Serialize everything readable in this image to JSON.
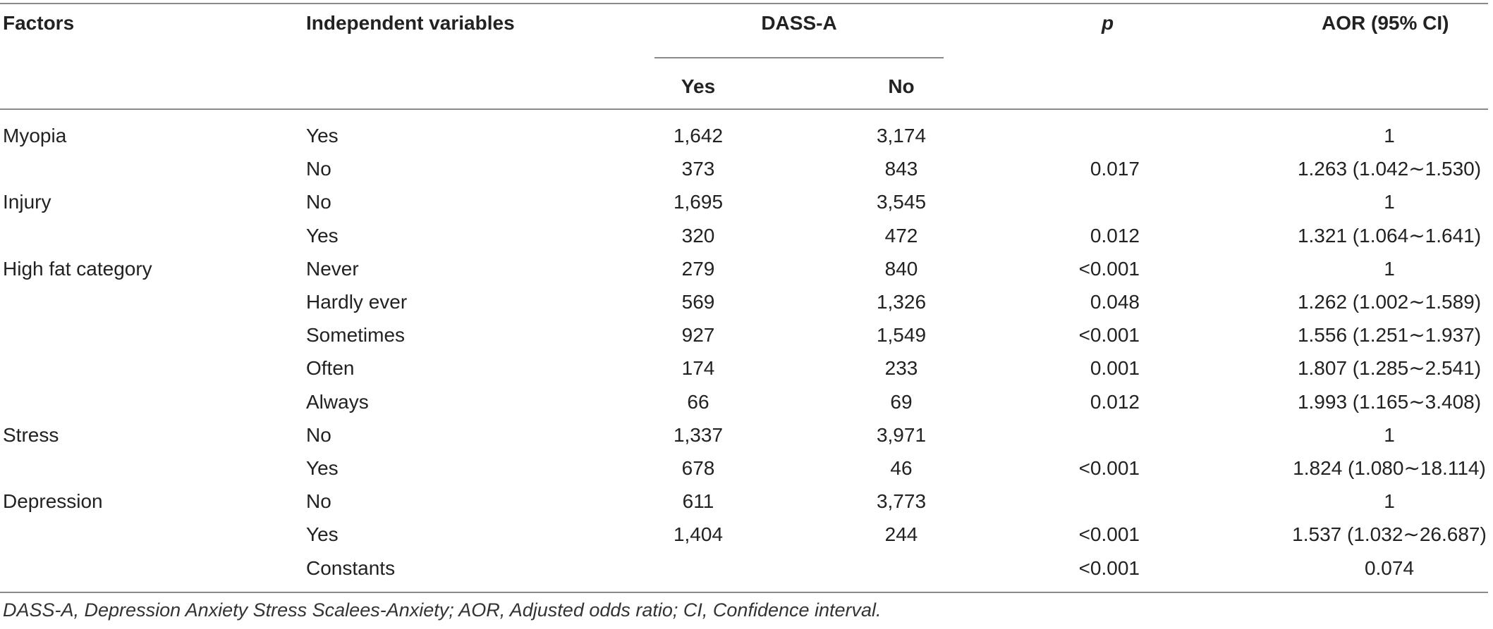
{
  "table": {
    "headers": {
      "factors": "Factors",
      "independent_variables": "Independent variables",
      "dass_a": "DASS-A",
      "p": "p",
      "aor": "AOR (95% CI)",
      "yes": "Yes",
      "no": "No"
    },
    "rows": [
      {
        "factor": "Myopia",
        "variable": "Yes",
        "yes": "1,642",
        "no": "3,174",
        "p": "",
        "aor": "1"
      },
      {
        "factor": "",
        "variable": "No",
        "yes": "373",
        "no": "843",
        "p": "0.017",
        "aor": "1.263 (1.042∼1.530)"
      },
      {
        "factor": "Injury",
        "variable": "No",
        "yes": "1,695",
        "no": "3,545",
        "p": "",
        "aor": "1"
      },
      {
        "factor": "",
        "variable": "Yes",
        "yes": "320",
        "no": "472",
        "p": "0.012",
        "aor": "1.321 (1.064∼1.641)"
      },
      {
        "factor": "High fat category",
        "variable": "Never",
        "yes": "279",
        "no": "840",
        "p": "<0.001",
        "aor": "1"
      },
      {
        "factor": "",
        "variable": "Hardly ever",
        "yes": "569",
        "no": "1,326",
        "p": "0.048",
        "aor": "1.262 (1.002∼1.589)"
      },
      {
        "factor": "",
        "variable": "Sometimes",
        "yes": "927",
        "no": "1,549",
        "p": "<0.001",
        "aor": "1.556 (1.251∼1.937)"
      },
      {
        "factor": "",
        "variable": "Often",
        "yes": "174",
        "no": "233",
        "p": "0.001",
        "aor": "1.807 (1.285∼2.541)"
      },
      {
        "factor": "",
        "variable": "Always",
        "yes": "66",
        "no": "69",
        "p": "0.012",
        "aor": "1.993 (1.165∼3.408)"
      },
      {
        "factor": "Stress",
        "variable": "No",
        "yes": "1,337",
        "no": "3,971",
        "p": "",
        "aor": "1"
      },
      {
        "factor": "",
        "variable": "Yes",
        "yes": "678",
        "no": "46",
        "p": "<0.001",
        "aor": "1.824 (1.080∼18.114)"
      },
      {
        "factor": "Depression",
        "variable": "No",
        "yes": "611",
        "no": "3,773",
        "p": "",
        "aor": "1"
      },
      {
        "factor": "",
        "variable": "Yes",
        "yes": "1,404",
        "no": "244",
        "p": "<0.001",
        "aor": "1.537 (1.032∼26.687)"
      },
      {
        "factor": "",
        "variable": "Constants",
        "yes": "",
        "no": "",
        "p": "<0.001",
        "aor": "0.074"
      }
    ]
  },
  "footnote": "DASS-A, Depression Anxiety Stress Scalees-Anxiety; AOR, Adjusted odds ratio; CI, Confidence interval."
}
